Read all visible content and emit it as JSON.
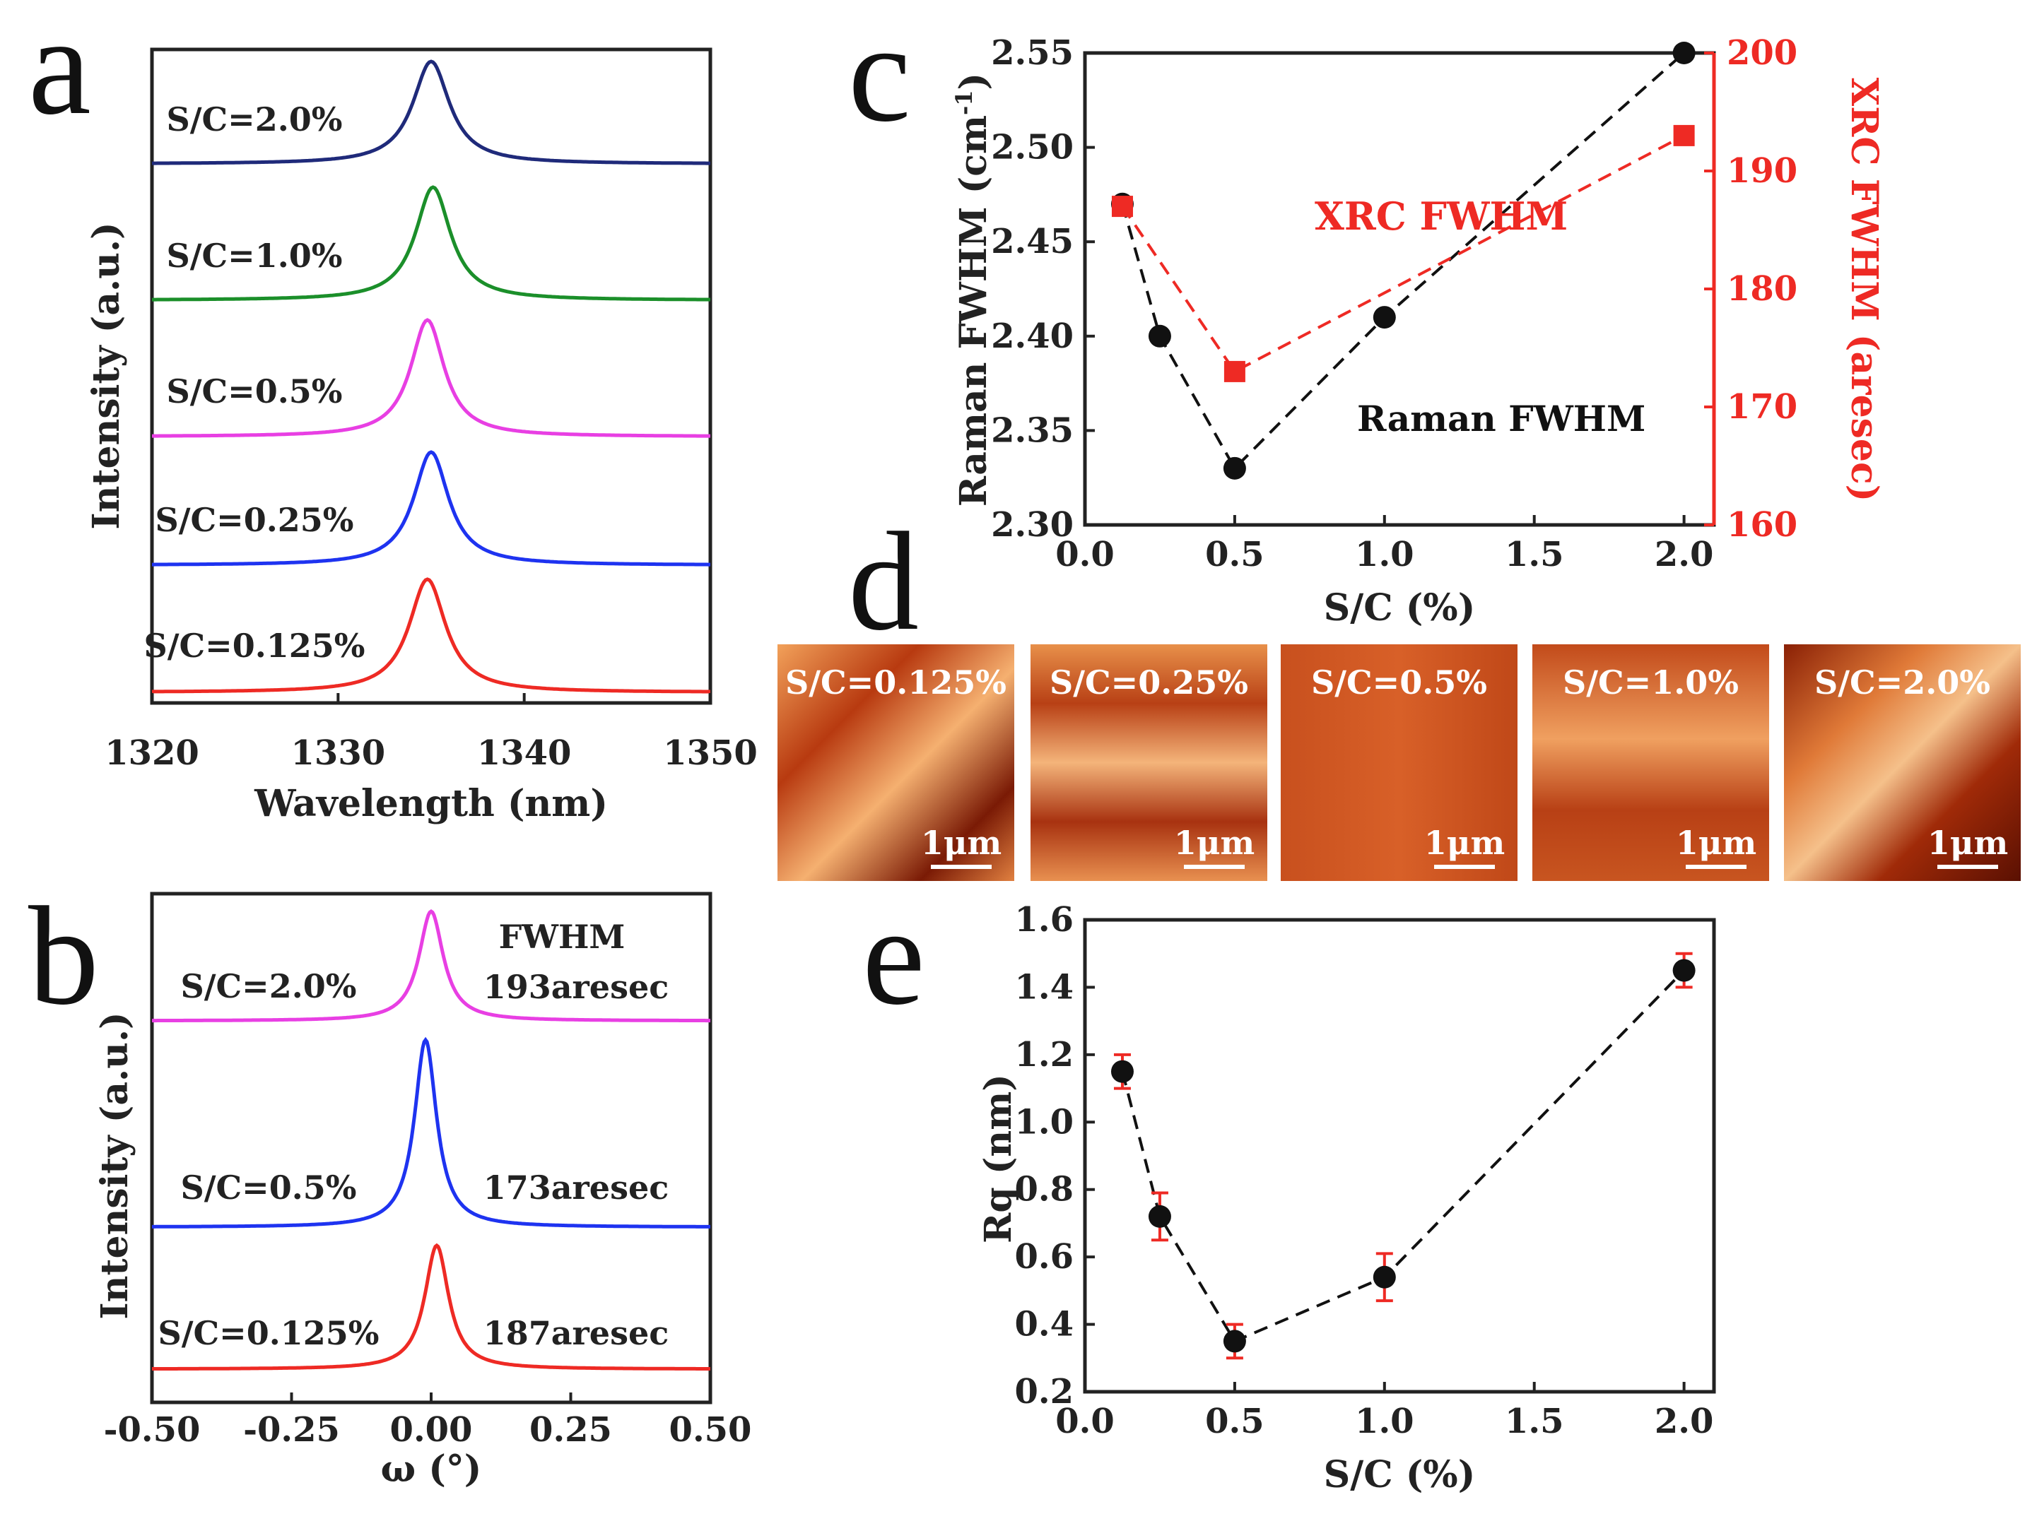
{
  "colors": {
    "navy": "#1f2a7a",
    "green": "#1b8f2a",
    "magenta": "#e83fe3",
    "blue": "#1e33f0",
    "red": "#ee2a24",
    "black": "#111111",
    "xrc": "#ee2a24"
  },
  "chart_data": [
    {
      "panel": "a",
      "type": "line",
      "xlabel": "Wavelength (nm)",
      "ylabel": "Intensity (a.u.)",
      "xlim": [
        1320,
        1350
      ],
      "xticks": [
        "1320",
        "1330",
        "1340",
        "1350"
      ],
      "series": [
        {
          "name": "S/C=2.0%",
          "center": 1335.0,
          "fwhm": 2.4,
          "color": "navy"
        },
        {
          "name": "S/C=1.0%",
          "center": 1335.1,
          "fwhm": 2.3,
          "color": "green"
        },
        {
          "name": "S/C=0.5%",
          "center": 1334.8,
          "fwhm": 2.2,
          "color": "magenta"
        },
        {
          "name": "S/C=0.25%",
          "center": 1335.0,
          "fwhm": 2.3,
          "color": "blue"
        },
        {
          "name": "S/C=0.125%",
          "center": 1334.8,
          "fwhm": 2.4,
          "color": "red"
        }
      ]
    },
    {
      "panel": "b",
      "type": "line",
      "xlabel": "ω (°)",
      "ylabel": "Intensity (a.u.)",
      "xlim": [
        -0.5,
        0.5
      ],
      "xticks": [
        "-0.50",
        "-0.25",
        "0.00",
        "0.25",
        "0.50"
      ],
      "header": "FWHM",
      "series": [
        {
          "name": "S/C=2.0%",
          "center": 0.0,
          "fwhm": 0.053,
          "annotation": "193aresec",
          "color": "magenta"
        },
        {
          "name": "S/C=0.5%",
          "center": -0.01,
          "fwhm": 0.048,
          "annotation": "173aresec",
          "color": "blue"
        },
        {
          "name": "S/C=0.125%",
          "center": 0.01,
          "fwhm": 0.052,
          "annotation": "187aresec",
          "color": "red"
        }
      ]
    },
    {
      "panel": "c",
      "type": "scatter",
      "xlabel": "S/C (%)",
      "ylabel": "Raman FWHM (cm",
      "ylabel_sup": "-1",
      "ylabel_close": ")",
      "y2label": "XRC FWHM (aresec)",
      "xlim": [
        0.0,
        2.1
      ],
      "ylim": [
        2.3,
        2.55
      ],
      "y2lim": [
        160,
        200
      ],
      "xticks": [
        "0.0",
        "0.5",
        "1.0",
        "1.5",
        "2.0"
      ],
      "yticks": [
        "2.30",
        "2.35",
        "2.40",
        "2.45",
        "2.50",
        "2.55"
      ],
      "y2ticks": [
        "160",
        "170",
        "180",
        "190",
        "200"
      ],
      "series": [
        {
          "name": "Raman FWHM",
          "axis": "left",
          "marker": "circle",
          "color": "black",
          "x": [
            0.125,
            0.25,
            0.5,
            1.0,
            2.0
          ],
          "y": [
            2.47,
            2.4,
            2.33,
            2.41,
            2.55
          ]
        },
        {
          "name": "XRC FWHM",
          "axis": "right",
          "marker": "square",
          "color": "xrc",
          "x": [
            0.125,
            0.5,
            2.0
          ],
          "y": [
            187,
            173,
            193
          ]
        }
      ]
    },
    {
      "panel": "e",
      "type": "scatter",
      "xlabel": "S/C (%)",
      "ylabel": "Rq (nm)",
      "xlim": [
        0.0,
        2.1
      ],
      "ylim": [
        0.2,
        1.6
      ],
      "xticks": [
        "0.0",
        "0.5",
        "1.0",
        "1.5",
        "2.0"
      ],
      "yticks": [
        "0.2",
        "0.4",
        "0.6",
        "0.8",
        "1.0",
        "1.2",
        "1.4",
        "1.6"
      ],
      "series": [
        {
          "name": "Rq",
          "marker": "circle",
          "color": "black",
          "x": [
            0.125,
            0.25,
            0.5,
            1.0,
            2.0
          ],
          "y": [
            1.15,
            0.72,
            0.35,
            0.54,
            1.45
          ],
          "err": [
            0.05,
            0.07,
            0.05,
            0.07,
            0.05
          ]
        }
      ]
    }
  ],
  "panel_d": {
    "images": [
      "S/C=0.125%",
      "S/C=0.25%",
      "S/C=0.5%",
      "S/C=1.0%",
      "S/C=2.0%"
    ],
    "scale_bar": "1μm"
  },
  "panel_labels": [
    "a",
    "b",
    "c",
    "d",
    "e"
  ]
}
